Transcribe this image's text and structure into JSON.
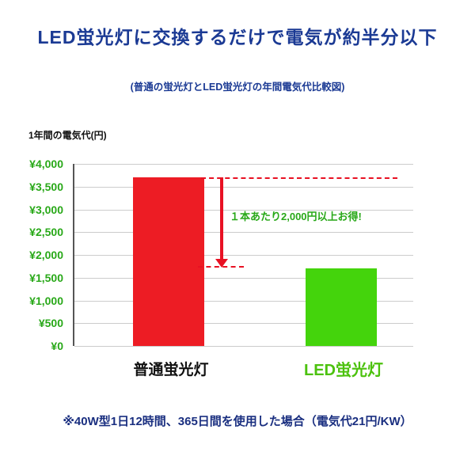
{
  "title": "LED蛍光灯に交換するだけで電気が約半分以下",
  "subtitle": "(普通の蛍光灯とLED蛍光灯の年間電気代比較図)",
  "annotation": "１本あたり2,000円以上お得!",
  "footnote": "※40W型1日12時間、365日間を使用した場合（電気代21円/KW）",
  "colors": {
    "title_navy": "#1b3a94",
    "bar_red": "#ed1c24",
    "bar_green": "#44d40c",
    "tick_text_green": "#28a818",
    "led_label_green": "#4cc20e",
    "dash_arrow_red": "#e81123",
    "gridline_gray": "#cccccc"
  },
  "chart_data": {
    "type": "bar",
    "title": "普通の蛍光灯とLED蛍光灯の年間電気代比較図",
    "ylabel": "1年間の電気代(円)",
    "categories": [
      "普通蛍光灯",
      "LED蛍光灯"
    ],
    "values": [
      3700,
      1700
    ],
    "bar_colors": [
      "#ed1c24",
      "#44d40c"
    ],
    "ylim": [
      0,
      4000
    ],
    "ytick_step": 500,
    "yticks": [
      "¥4,000",
      "¥3,500",
      "¥3,000",
      "¥2,500",
      "¥2,000",
      "¥1,500",
      "¥1,000",
      "¥500",
      "¥0"
    ],
    "dash_levels": [
      3700,
      1750
    ],
    "grid": true,
    "legend": false
  }
}
